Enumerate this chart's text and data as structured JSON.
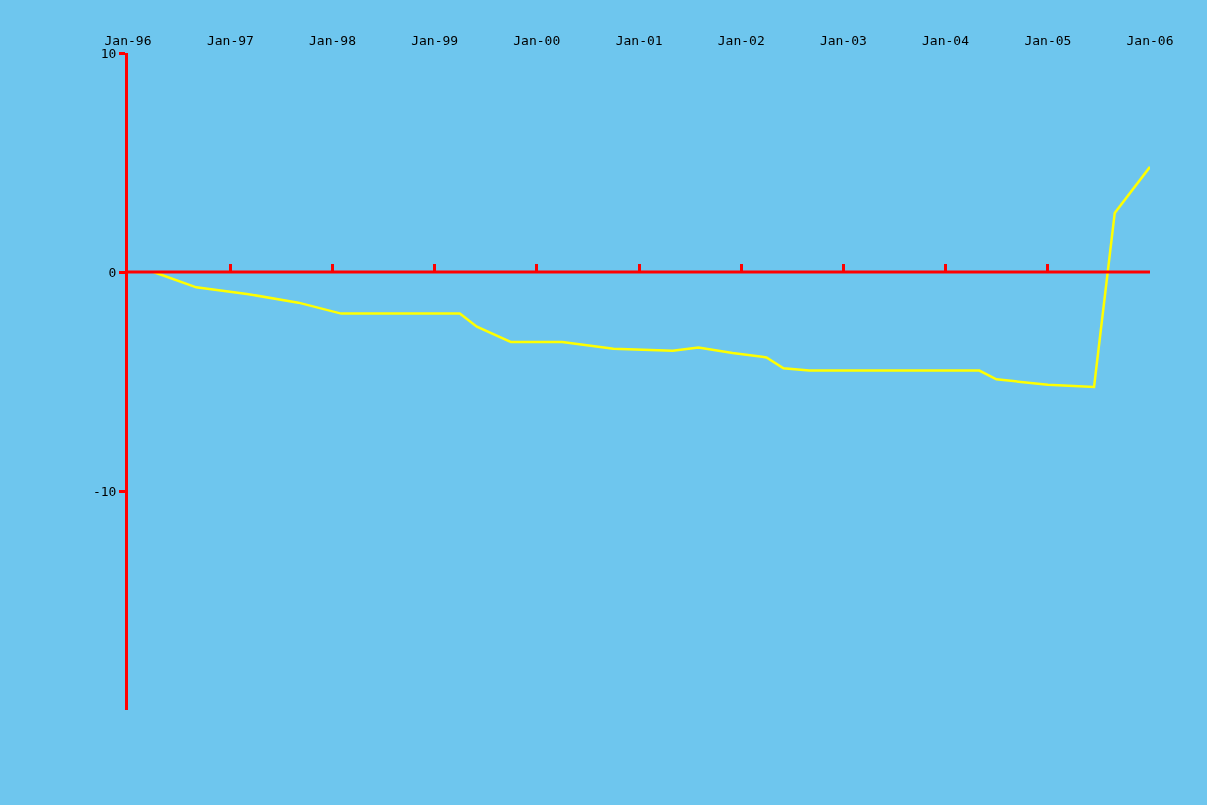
{
  "chart_data": {
    "type": "line",
    "x": [
      "1996-04",
      "1996-09",
      "1997-03",
      "1997-09",
      "1998-02",
      "1999-04",
      "1999-06",
      "1999-10",
      "2000-04",
      "2000-10",
      "2001-05",
      "2001-08",
      "2001-12",
      "2002-04",
      "2002-06",
      "2002-09",
      "2004-05",
      "2004-07",
      "2005-01",
      "2005-06-15",
      "2005-08-28",
      "2006-01"
    ],
    "series": [
      {
        "color": "#ffff00",
        "values": [
          0,
          -0.7,
          -1.0,
          -1.4,
          -1.9,
          -1.9,
          -2.5,
          -3.2,
          -3.2,
          -3.5,
          -3.6,
          -3.45,
          -3.7,
          -3.9,
          -4.4,
          -4.5,
          -4.5,
          -4.9,
          -5.15,
          -5.25,
          2.7,
          4.8
        ]
      }
    ],
    "xlim": [
      "1996-01",
      "2006-01"
    ],
    "xticks": [
      {
        "value": "1996-01",
        "label": "Jan-96"
      },
      {
        "value": "1997-01",
        "label": "Jan-97"
      },
      {
        "value": "1998-01",
        "label": "Jan-98"
      },
      {
        "value": "1999-01",
        "label": "Jan-99"
      },
      {
        "value": "2000-01",
        "label": "Jan-00"
      },
      {
        "value": "2001-01",
        "label": "Jan-01"
      },
      {
        "value": "2002-01",
        "label": "Jan-02"
      },
      {
        "value": "2003-01",
        "label": "Jan-03"
      },
      {
        "value": "2004-01",
        "label": "Jan-04"
      },
      {
        "value": "2005-01",
        "label": "Jan-05"
      },
      {
        "value": "2006-01",
        "label": "Jan-06"
      }
    ],
    "ylim": [
      -20,
      10
    ],
    "yticks": [
      10,
      0,
      -10
    ],
    "grid": false,
    "ref_lines": [
      {
        "axis": "y",
        "value": 0,
        "color": "#ff0000",
        "line_style": "solid"
      }
    ],
    "marker": "none",
    "line_style": "solid"
  }
}
